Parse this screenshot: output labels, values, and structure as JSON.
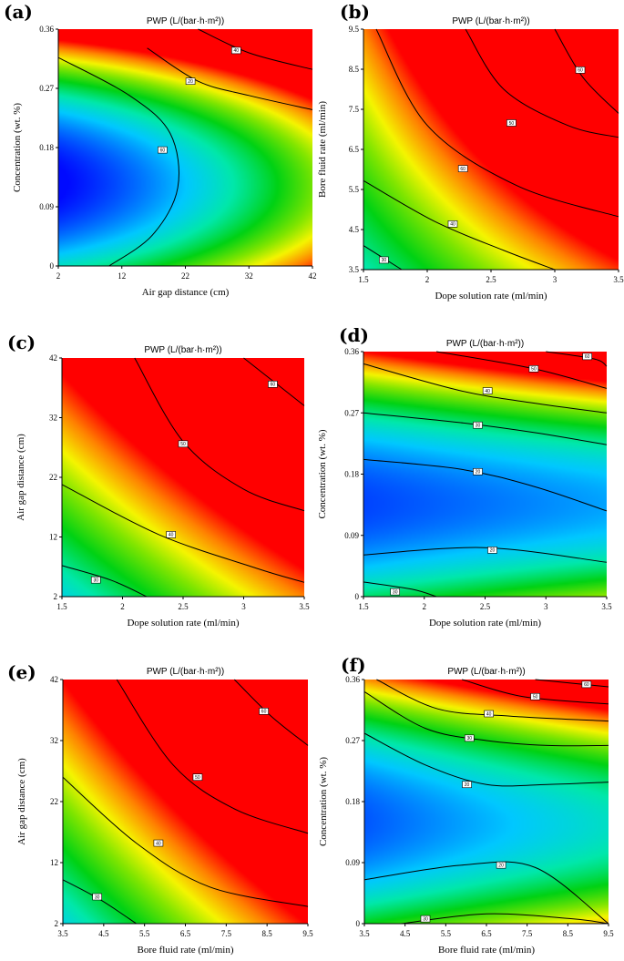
{
  "chart_data": [
    {
      "panel": "(a)",
      "type": "heatmap",
      "title": "PWP (L/(bar·h·m²))",
      "xlabel": "Air gap distance (cm)",
      "ylabel": "Concentration (wt. %)",
      "x_ticks": [
        "2",
        "12",
        "22",
        "32",
        "42"
      ],
      "y_ticks": [
        "0",
        "0.09",
        "0.18",
        "0.27",
        "0.36"
      ],
      "xlim": [
        2,
        42
      ],
      "ylim": [
        0,
        0.36
      ],
      "contour_labels": [
        "20",
        "40",
        "60"
      ]
    },
    {
      "panel": "(b)",
      "type": "heatmap",
      "title": "PWP (L/(bar·h·m²))",
      "xlabel": "Dope solution rate (ml/min)",
      "ylabel": "Bore fluid rate (ml/min)",
      "x_ticks": [
        "1.5",
        "2",
        "2.5",
        "3",
        "3.5"
      ],
      "y_ticks": [
        "3.5",
        "4.5",
        "5.5",
        "6.5",
        "7.5",
        "8.5",
        "9.5"
      ],
      "xlim": [
        1.5,
        3.5
      ],
      "ylim": [
        3.5,
        9.5
      ],
      "contour_labels": [
        "30",
        "40",
        "60",
        "50",
        "60"
      ]
    },
    {
      "panel": "(c)",
      "type": "heatmap",
      "title": "PWP (L/(bar·h·m²))",
      "xlabel": "Dope solution rate (ml/min)",
      "ylabel": "Air gap distance (cm)",
      "x_ticks": [
        "1.5",
        "2",
        "2.5",
        "3",
        "3.5"
      ],
      "y_ticks": [
        "2",
        "12",
        "22",
        "32",
        "42"
      ],
      "xlim": [
        1.5,
        3.5
      ],
      "ylim": [
        2,
        42
      ],
      "contour_labels": [
        "30",
        "40",
        "50",
        "60"
      ]
    },
    {
      "panel": "(d)",
      "type": "heatmap",
      "title": "PWP (L/(bar·h·m²))",
      "xlabel": "Dope solution rate (ml/min)",
      "ylabel": "Concentration (wt. %)",
      "x_ticks": [
        "1.5",
        "2",
        "2.5",
        "3",
        "3.5"
      ],
      "y_ticks": [
        "0",
        "0.09",
        "0.18",
        "0.27",
        "0.36"
      ],
      "xlim": [
        1.5,
        3.5
      ],
      "ylim": [
        0,
        0.36
      ],
      "contour_labels": [
        "30",
        "20",
        "20",
        "30",
        "40",
        "50",
        "60"
      ]
    },
    {
      "panel": "(e)",
      "type": "heatmap",
      "title": "PWP (L/(bar·h·m²))",
      "xlabel": "Bore fluid rate (ml/min)",
      "ylabel": "Air gap distance (cm)",
      "x_ticks": [
        "3.5",
        "4.5",
        "5.5",
        "6.5",
        "7.5",
        "8.5",
        "9.5"
      ],
      "y_ticks": [
        "2",
        "12",
        "22",
        "32",
        "42"
      ],
      "xlim": [
        3.5,
        9.5
      ],
      "ylim": [
        2,
        42
      ],
      "contour_labels": [
        "30",
        "40",
        "50",
        "60"
      ]
    },
    {
      "panel": "(f)",
      "type": "heatmap",
      "title": "PWP (L/(bar·h·m²))",
      "xlabel": "Bore fluid rate (ml/min)",
      "ylabel": "Concentration (wt. %)",
      "x_ticks": [
        "3.5",
        "4.5",
        "5.5",
        "6.5",
        "7.5",
        "8.5",
        "9.5"
      ],
      "y_ticks": [
        "0",
        "0.09",
        "0.18",
        "0.27",
        "0.36"
      ],
      "xlim": [
        3.5,
        9.5
      ],
      "ylim": [
        0,
        0.36
      ],
      "contour_labels": [
        "30",
        "20",
        "20",
        "30",
        "40",
        "50",
        "60"
      ]
    }
  ]
}
